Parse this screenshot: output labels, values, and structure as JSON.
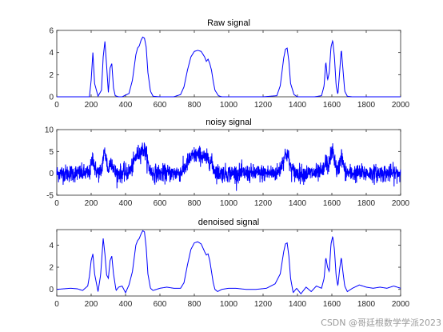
{
  "watermark": "CSDN @哥廷根数学学派2023",
  "chart_data": [
    {
      "type": "line",
      "title": "Raw signal",
      "xlim": [
        0,
        2000
      ],
      "ylim": [
        0,
        6
      ],
      "xticks": [
        0,
        200,
        400,
        600,
        800,
        1000,
        1200,
        1400,
        1600,
        1800,
        2000
      ],
      "yticks": [
        0,
        2,
        4,
        6
      ],
      "grid": false,
      "color": "#0000ff",
      "series": [
        {
          "x": [
            0,
            190,
            200,
            210,
            220,
            240,
            260,
            270,
            280,
            290,
            300,
            310,
            320,
            330,
            340,
            360,
            380,
            420,
            440,
            460,
            470,
            480,
            490,
            500,
            510,
            520,
            530,
            545,
            560,
            600,
            680,
            720,
            740,
            760,
            780,
            800,
            820,
            840,
            860,
            870,
            880,
            890,
            900,
            910,
            920,
            940,
            960,
            1000,
            1200,
            1280,
            1300,
            1320,
            1330,
            1340,
            1350,
            1360,
            1380,
            1400,
            1500,
            1540,
            1555,
            1565,
            1575,
            1585,
            1595,
            1605,
            1615,
            1625,
            1635,
            1645,
            1655,
            1665,
            1675,
            1690,
            1720,
            1800,
            2000
          ],
          "y": [
            0,
            0,
            1.5,
            4.0,
            1.2,
            0.05,
            0.6,
            3.6,
            5.0,
            2.8,
            0.4,
            2.6,
            3.0,
            0.8,
            0.1,
            0,
            0,
            0.3,
            1.5,
            3.8,
            4.4,
            4.6,
            5.1,
            5.4,
            5.3,
            4.5,
            2.2,
            0.5,
            0.05,
            0,
            0,
            0.2,
            0.9,
            2.4,
            3.6,
            4.1,
            4.2,
            4.1,
            3.6,
            3.2,
            3.4,
            3.0,
            2.4,
            1.4,
            0.6,
            0.1,
            0,
            0,
            0,
            0.1,
            1.0,
            3.5,
            4.3,
            4.4,
            3.2,
            1.2,
            0.2,
            0,
            0,
            0.1,
            1.0,
            3.2,
            1.5,
            2.2,
            4.5,
            5.1,
            3.6,
            1.0,
            0.2,
            2.2,
            4.3,
            2.4,
            0.5,
            0.05,
            0,
            0,
            0
          ]
        }
      ]
    },
    {
      "type": "line",
      "title": "noisy signal",
      "xlim": [
        0,
        2000
      ],
      "ylim": [
        -5,
        10
      ],
      "xticks": [
        0,
        200,
        400,
        600,
        800,
        1000,
        1200,
        1400,
        1600,
        1800,
        2000
      ],
      "yticks": [
        -5,
        0,
        5,
        10
      ],
      "grid": false,
      "color": "#0000ff",
      "noise_amplitude": 1
    },
    {
      "type": "line",
      "title": "denoised signal",
      "xlim": [
        0,
        2000
      ],
      "ylim": [
        -0.6,
        5.4
      ],
      "xticks": [
        0,
        200,
        400,
        600,
        800,
        1000,
        1200,
        1400,
        1600,
        1800,
        2000
      ],
      "yticks": [
        0,
        2,
        4
      ],
      "grid": false,
      "color": "#0000ff",
      "series": [
        {
          "x": [
            0,
            40,
            80,
            120,
            150,
            180,
            190,
            200,
            210,
            220,
            240,
            255,
            270,
            280,
            290,
            300,
            310,
            320,
            330,
            345,
            360,
            380,
            400,
            420,
            440,
            460,
            470,
            480,
            490,
            500,
            510,
            520,
            530,
            545,
            560,
            600,
            640,
            680,
            720,
            740,
            760,
            780,
            800,
            820,
            840,
            860,
            870,
            880,
            890,
            900,
            910,
            920,
            935,
            960,
            1000,
            1040,
            1100,
            1160,
            1220,
            1270,
            1300,
            1320,
            1330,
            1340,
            1350,
            1360,
            1375,
            1395,
            1420,
            1450,
            1480,
            1510,
            1540,
            1555,
            1565,
            1575,
            1585,
            1595,
            1605,
            1615,
            1625,
            1635,
            1645,
            1655,
            1665,
            1675,
            1690,
            1720,
            1760,
            1800,
            1840,
            1880,
            1920,
            1960,
            2000
          ],
          "y": [
            0,
            0.05,
            0.1,
            0.05,
            -0.1,
            0.3,
            1.2,
            2.6,
            3.2,
            1.4,
            -0.2,
            1.3,
            4.6,
            3.2,
            1.3,
            1.0,
            2.6,
            3.0,
            1.4,
            -0.1,
            0.2,
            0.3,
            -0.3,
            0.4,
            1.6,
            4.0,
            4.4,
            4.6,
            5.0,
            5.3,
            5.2,
            3.8,
            1.4,
            0.1,
            -0.1,
            0.1,
            0.2,
            0.1,
            0.1,
            0.6,
            2.2,
            3.6,
            4.2,
            4.3,
            4.1,
            3.4,
            3.1,
            3.2,
            2.6,
            1.6,
            0.6,
            0.0,
            -0.2,
            0.0,
            0.1,
            0.1,
            0.0,
            0.0,
            0.1,
            0.5,
            1.4,
            3.4,
            4.1,
            4.2,
            3.0,
            1.0,
            -0.3,
            0.1,
            -0.4,
            0.2,
            -0.2,
            0.3,
            0.1,
            1.0,
            2.9,
            2.0,
            1.6,
            4.1,
            4.8,
            3.6,
            1.2,
            0.3,
            1.8,
            2.9,
            1.5,
            0.3,
            -0.2,
            0.1,
            0.4,
            0.2,
            0.1,
            0.2,
            0.1,
            0.3,
            0.1
          ]
        }
      ]
    }
  ]
}
